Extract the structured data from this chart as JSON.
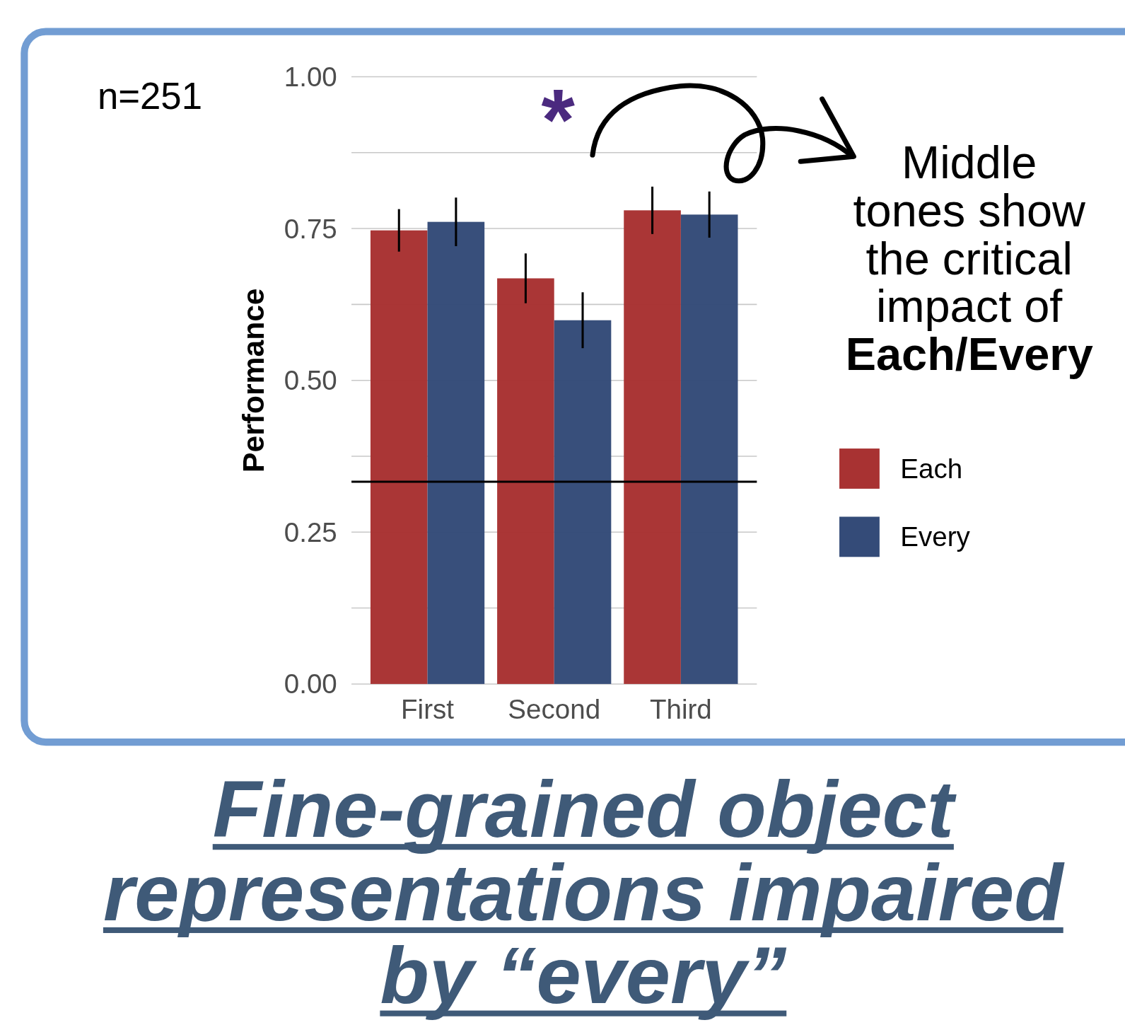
{
  "chart_data": {
    "type": "bar",
    "title": "Fine-grained object representations impaired by “every”",
    "ylabel": "Performance",
    "categories": [
      "First",
      "Second",
      "Third"
    ],
    "series": [
      {
        "name": "Each",
        "color": "#a83232",
        "values": [
          0.747,
          0.668,
          0.78
        ],
        "errors": [
          0.035,
          0.041,
          0.039
        ]
      },
      {
        "name": "Every",
        "color": "#344b78",
        "values": [
          0.761,
          0.599,
          0.773
        ],
        "errors": [
          0.04,
          0.046,
          0.038
        ]
      }
    ],
    "ylim": [
      0,
      1
    ],
    "yticks": [
      {
        "value": 0,
        "label": "0.00"
      },
      {
        "value": 0.125,
        "label": null
      },
      {
        "value": 0.25,
        "label": "0.25"
      },
      {
        "value": 0.375,
        "label": null
      },
      {
        "value": 0.5,
        "label": "0.50"
      },
      {
        "value": 0.625,
        "label": null
      },
      {
        "value": 0.75,
        "label": "0.75"
      },
      {
        "value": 0.875,
        "label": null
      },
      {
        "value": 1,
        "label": "1.00"
      }
    ],
    "grid": "y",
    "legend": "right",
    "ref_lines": [
      {
        "axis": "y",
        "value": 0.333,
        "color": "#000000"
      }
    ],
    "annotations": [
      "n=251",
      "*",
      "Middle tones show the critical impact of",
      "Each/Every"
    ]
  }
}
